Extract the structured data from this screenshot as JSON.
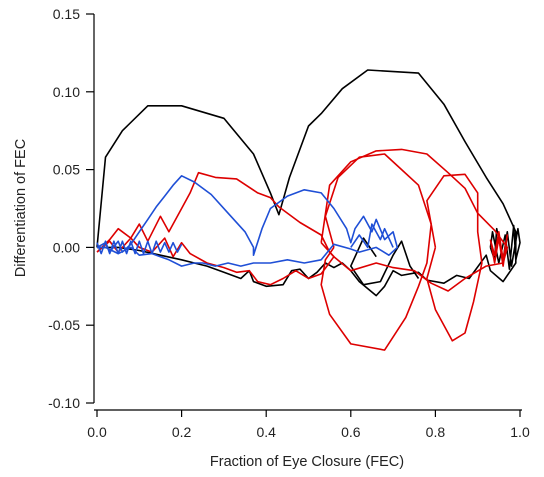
{
  "chart_data": {
    "type": "line",
    "xlabel": "Fraction of Eye Closure (FEC)",
    "ylabel": "Differentiation of FEC",
    "xlim": [
      0.0,
      1.0
    ],
    "ylim": [
      -0.1,
      0.15
    ],
    "xticks": [
      "0.0",
      "0.2",
      "0.4",
      "0.6",
      "0.8",
      "1.0"
    ],
    "yticks": [
      "-0.10",
      "-0.05",
      "0.00",
      "0.05",
      "0.10",
      "0.15"
    ],
    "grid": false,
    "series": [
      {
        "color": "#000000",
        "points": [
          [
            0.0,
            0.0
          ],
          [
            0.02,
            0.058
          ],
          [
            0.06,
            0.075
          ],
          [
            0.12,
            0.091
          ],
          [
            0.2,
            0.091
          ],
          [
            0.3,
            0.083
          ],
          [
            0.37,
            0.06
          ],
          [
            0.41,
            0.035
          ],
          [
            0.43,
            0.021
          ],
          [
            0.455,
            0.045
          ],
          [
            0.5,
            0.078
          ],
          [
            0.53,
            0.086
          ],
          [
            0.58,
            0.102
          ],
          [
            0.64,
            0.114
          ],
          [
            0.76,
            0.112
          ],
          [
            0.82,
            0.092
          ],
          [
            0.87,
            0.068
          ],
          [
            0.92,
            0.045
          ],
          [
            0.96,
            0.028
          ],
          [
            0.99,
            0.01
          ],
          [
            0.99,
            -0.01
          ],
          [
            0.96,
            -0.022
          ],
          [
            0.93,
            -0.015
          ],
          [
            0.92,
            -0.005
          ],
          [
            0.88,
            -0.02
          ],
          [
            0.85,
            -0.018
          ],
          [
            0.82,
            -0.023
          ],
          [
            0.78,
            -0.021
          ],
          [
            0.76,
            -0.016
          ],
          [
            0.72,
            -0.018
          ],
          [
            0.7,
            -0.015
          ],
          [
            0.68,
            -0.025
          ],
          [
            0.66,
            -0.031
          ],
          [
            0.62,
            -0.022
          ],
          [
            0.6,
            -0.015
          ],
          [
            0.58,
            -0.01
          ],
          [
            0.56,
            -0.013
          ],
          [
            0.54,
            -0.01
          ],
          [
            0.52,
            -0.016
          ],
          [
            0.5,
            -0.02
          ],
          [
            0.48,
            -0.014
          ],
          [
            0.46,
            -0.015
          ],
          [
            0.44,
            -0.024
          ],
          [
            0.4,
            -0.025
          ],
          [
            0.37,
            -0.022
          ],
          [
            0.36,
            -0.015
          ],
          [
            0.34,
            -0.02
          ],
          [
            0.3,
            -0.016
          ],
          [
            0.26,
            -0.012
          ],
          [
            0.23,
            -0.01
          ],
          [
            0.2,
            -0.008
          ],
          [
            0.15,
            -0.005
          ],
          [
            0.1,
            -0.002
          ],
          [
            0.05,
            0.0
          ],
          [
            0.0,
            0.0
          ]
        ]
      },
      {
        "color": "#000000",
        "points": [
          [
            0.66,
            -0.006
          ],
          [
            0.63,
            0.006
          ],
          [
            0.6,
            -0.012
          ],
          [
            0.63,
            -0.024
          ],
          [
            0.67,
            -0.022
          ],
          [
            0.7,
            -0.005
          ],
          [
            0.72,
            0.004
          ],
          [
            0.74,
            -0.012
          ],
          [
            0.76,
            -0.02
          ]
        ]
      },
      {
        "color": "#000000",
        "points": [
          [
            0.93,
            0.0
          ],
          [
            0.935,
            0.01
          ],
          [
            0.95,
            -0.01
          ],
          [
            0.965,
            0.008
          ],
          [
            0.975,
            -0.014
          ],
          [
            0.985,
            0.014
          ],
          [
            0.99,
            -0.008
          ],
          [
            1.0,
            0.003
          ],
          [
            0.995,
            0.012
          ],
          [
            0.98,
            -0.012
          ],
          [
            0.97,
            0.01
          ],
          [
            0.96,
            -0.008
          ],
          [
            0.945,
            0.012
          ],
          [
            0.94,
            -0.008
          ],
          [
            0.93,
            0.0
          ]
        ]
      },
      {
        "color": "#dd0000",
        "points": [
          [
            0.0,
            -0.003
          ],
          [
            0.03,
            0.005
          ],
          [
            0.05,
            0.012
          ],
          [
            0.08,
            0.006
          ],
          [
            0.1,
            0.015
          ],
          [
            0.12,
            0.004
          ],
          [
            0.15,
            0.02
          ],
          [
            0.17,
            0.01
          ],
          [
            0.2,
            0.025
          ],
          [
            0.22,
            0.035
          ],
          [
            0.24,
            0.048
          ],
          [
            0.28,
            0.045
          ],
          [
            0.33,
            0.044
          ],
          [
            0.38,
            0.035
          ],
          [
            0.41,
            0.032
          ],
          [
            0.43,
            0.026
          ],
          [
            0.48,
            0.016
          ],
          [
            0.53,
            0.008
          ],
          [
            0.55,
            -0.003
          ],
          [
            0.56,
            -0.006
          ],
          [
            0.53,
            -0.017
          ],
          [
            0.5,
            -0.02
          ],
          [
            0.47,
            -0.015
          ],
          [
            0.44,
            -0.02
          ],
          [
            0.41,
            -0.024
          ],
          [
            0.38,
            -0.022
          ],
          [
            0.36,
            -0.015
          ],
          [
            0.33,
            -0.016
          ],
          [
            0.3,
            -0.013
          ],
          [
            0.26,
            -0.01
          ],
          [
            0.22,
            -0.004
          ],
          [
            0.2,
            0.003
          ],
          [
            0.18,
            -0.006
          ],
          [
            0.16,
            0.006
          ],
          [
            0.13,
            -0.003
          ],
          [
            0.1,
            0.0
          ],
          [
            0.08,
            0.006
          ],
          [
            0.05,
            -0.003
          ],
          [
            0.03,
            0.004
          ],
          [
            0.0,
            -0.003
          ]
        ]
      },
      {
        "color": "#dd0000",
        "points": [
          [
            0.53,
            0.003
          ],
          [
            0.55,
            0.04
          ],
          [
            0.6,
            0.055
          ],
          [
            0.66,
            0.062
          ],
          [
            0.72,
            0.063
          ],
          [
            0.78,
            0.06
          ],
          [
            0.83,
            0.048
          ],
          [
            0.87,
            0.038
          ],
          [
            0.9,
            0.022
          ],
          [
            0.94,
            0.011
          ],
          [
            0.97,
            0.0
          ],
          [
            0.96,
            -0.01
          ],
          [
            0.92,
            -0.012
          ],
          [
            0.87,
            -0.02
          ],
          [
            0.83,
            -0.028
          ],
          [
            0.79,
            -0.023
          ],
          [
            0.75,
            -0.015
          ],
          [
            0.7,
            -0.013
          ],
          [
            0.66,
            -0.01
          ],
          [
            0.6,
            -0.015
          ],
          [
            0.56,
            -0.006
          ],
          [
            0.53,
            0.003
          ]
        ]
      },
      {
        "color": "#dd0000",
        "points": [
          [
            0.56,
            0.0
          ],
          [
            0.54,
            0.02
          ],
          [
            0.57,
            0.045
          ],
          [
            0.62,
            0.058
          ],
          [
            0.68,
            0.06
          ],
          [
            0.72,
            0.05
          ],
          [
            0.76,
            0.04
          ],
          [
            0.79,
            0.015
          ],
          [
            0.78,
            -0.01
          ],
          [
            0.76,
            -0.025
          ],
          [
            0.73,
            -0.045
          ],
          [
            0.68,
            -0.066
          ],
          [
            0.6,
            -0.062
          ],
          [
            0.55,
            -0.043
          ],
          [
            0.53,
            -0.024
          ],
          [
            0.54,
            -0.008
          ],
          [
            0.56,
            0.0
          ]
        ]
      },
      {
        "color": "#dd0000",
        "points": [
          [
            0.8,
            0.0
          ],
          [
            0.78,
            0.03
          ],
          [
            0.82,
            0.046
          ],
          [
            0.87,
            0.047
          ],
          [
            0.9,
            0.035
          ],
          [
            0.9,
            0.01
          ],
          [
            0.91,
            -0.01
          ],
          [
            0.89,
            -0.035
          ],
          [
            0.87,
            -0.055
          ],
          [
            0.84,
            -0.06
          ],
          [
            0.8,
            -0.04
          ],
          [
            0.78,
            -0.02
          ],
          [
            0.8,
            0.0
          ]
        ]
      },
      {
        "color": "#dd0000",
        "points": [
          [
            0.93,
            0.005
          ],
          [
            0.94,
            -0.005
          ],
          [
            0.95,
            0.01
          ],
          [
            0.96,
            -0.008
          ],
          [
            0.97,
            0.008
          ],
          [
            0.96,
            -0.012
          ],
          [
            0.95,
            0.006
          ],
          [
            0.94,
            -0.01
          ],
          [
            0.93,
            0.005
          ]
        ]
      },
      {
        "color": "#1f4fd6",
        "points": [
          [
            0.0,
            0.0
          ],
          [
            0.02,
            0.003
          ],
          [
            0.03,
            -0.003
          ],
          [
            0.05,
            0.004
          ],
          [
            0.06,
            -0.003
          ],
          [
            0.08,
            0.002
          ],
          [
            0.1,
            0.01
          ],
          [
            0.12,
            0.018
          ],
          [
            0.14,
            0.026
          ],
          [
            0.16,
            0.033
          ],
          [
            0.18,
            0.04
          ],
          [
            0.2,
            0.046
          ],
          [
            0.23,
            0.042
          ],
          [
            0.27,
            0.034
          ],
          [
            0.31,
            0.022
          ],
          [
            0.35,
            0.01
          ],
          [
            0.37,
            0.0
          ],
          [
            0.37,
            -0.005
          ],
          [
            0.39,
            0.012
          ],
          [
            0.41,
            0.025
          ],
          [
            0.45,
            0.033
          ],
          [
            0.49,
            0.037
          ],
          [
            0.53,
            0.035
          ],
          [
            0.56,
            0.025
          ],
          [
            0.59,
            0.012
          ],
          [
            0.6,
            0.003
          ],
          [
            0.61,
            0.012
          ],
          [
            0.63,
            0.02
          ],
          [
            0.65,
            0.01
          ],
          [
            0.66,
            0.018
          ],
          [
            0.68,
            0.005
          ],
          [
            0.7,
            0.01
          ],
          [
            0.71,
            0.0
          ],
          [
            0.69,
            -0.005
          ],
          [
            0.66,
            0.0
          ],
          [
            0.62,
            -0.003
          ],
          [
            0.6,
            -0.001
          ],
          [
            0.56,
            0.002
          ],
          [
            0.53,
            -0.008
          ],
          [
            0.49,
            -0.01
          ],
          [
            0.45,
            -0.008
          ],
          [
            0.41,
            -0.01
          ],
          [
            0.37,
            -0.01
          ],
          [
            0.34,
            -0.012
          ],
          [
            0.31,
            -0.01
          ],
          [
            0.28,
            -0.012
          ],
          [
            0.25,
            -0.01
          ],
          [
            0.23,
            -0.01
          ],
          [
            0.2,
            -0.012
          ],
          [
            0.17,
            -0.008
          ],
          [
            0.15,
            -0.006
          ],
          [
            0.13,
            -0.004
          ],
          [
            0.1,
            -0.005
          ],
          [
            0.08,
            0.0
          ],
          [
            0.05,
            -0.004
          ],
          [
            0.02,
            0.0
          ],
          [
            0.0,
            0.0
          ]
        ]
      },
      {
        "color": "#1f4fd6",
        "points": [
          [
            0.0,
            0.003
          ],
          [
            0.01,
            -0.004
          ],
          [
            0.02,
            0.004
          ],
          [
            0.03,
            -0.004
          ],
          [
            0.04,
            0.004
          ],
          [
            0.05,
            -0.004
          ],
          [
            0.06,
            0.004
          ],
          [
            0.07,
            -0.004
          ],
          [
            0.08,
            0.004
          ],
          [
            0.09,
            -0.004
          ],
          [
            0.1,
            0.004
          ],
          [
            0.11,
            -0.004
          ],
          [
            0.12,
            0.004
          ],
          [
            0.13,
            -0.004
          ],
          [
            0.14,
            0.004
          ],
          [
            0.15,
            -0.003
          ],
          [
            0.16,
            0.003
          ],
          [
            0.17,
            -0.003
          ],
          [
            0.18,
            0.003
          ],
          [
            0.19,
            -0.003
          ],
          [
            0.2,
            0.002
          ]
        ]
      },
      {
        "color": "#1f4fd6",
        "points": [
          [
            0.6,
            0.0
          ],
          [
            0.62,
            0.008
          ],
          [
            0.64,
            0.0
          ],
          [
            0.65,
            0.015
          ],
          [
            0.67,
            0.005
          ],
          [
            0.68,
            0.012
          ],
          [
            0.7,
            0.0
          ]
        ]
      }
    ]
  }
}
